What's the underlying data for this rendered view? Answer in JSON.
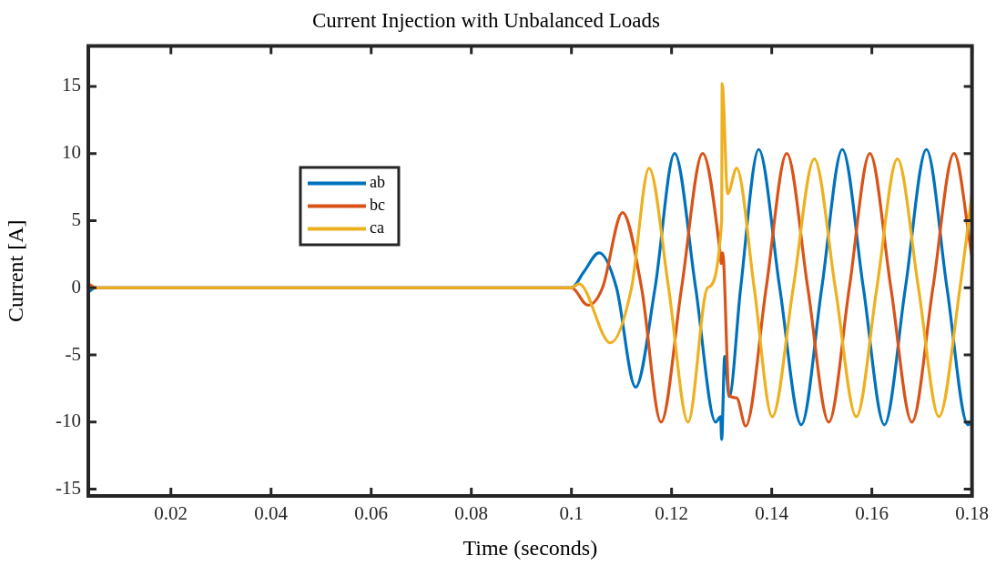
{
  "chart_data": {
    "type": "line",
    "title": "Current Injection with Unbalanced Loads",
    "xlabel": "Time (seconds)",
    "ylabel": "Current [A]",
    "xlim": [
      0.0035,
      0.18
    ],
    "xticks": [
      0.02,
      0.04,
      0.06,
      0.08,
      0.1,
      0.12,
      0.14,
      0.16,
      0.18
    ],
    "ylim": [
      -15.5,
      18
    ],
    "yticks": [
      -15,
      -10,
      -5,
      0,
      5,
      10,
      15
    ],
    "grid": false,
    "legend": "top left",
    "marker": "none",
    "line_style": "solid",
    "series": [
      {
        "name": "ab",
        "color": "#0072bd",
        "x": [
          0.0035,
          0.005,
          0.1,
          0.1025,
          0.1055,
          0.109,
          0.1128,
          0.1167,
          0.1206,
          0.1248,
          0.1288,
          0.1298,
          0.13,
          0.1306,
          0.1315,
          0.1338,
          0.1374,
          0.1416,
          0.1459,
          0.15,
          0.1541,
          0.1583,
          0.1625,
          0.1667,
          0.1709,
          0.175,
          0.1792,
          0.18
        ],
        "values": [
          -0.3,
          0,
          0,
          1.2,
          2.6,
          0,
          -7.4,
          0,
          10,
          0,
          -10,
          -9.6,
          -11.3,
          -5.1,
          -8.1,
          0,
          10.3,
          0,
          -10.2,
          0,
          10.3,
          0,
          -10.2,
          0,
          10.3,
          0,
          -10.2,
          -10
        ]
      },
      {
        "name": "bc",
        "color": "#d95319",
        "x": [
          0.0035,
          0.005,
          0.1,
          0.1033,
          0.1062,
          0.1102,
          0.114,
          0.1179,
          0.122,
          0.1262,
          0.1297,
          0.1299,
          0.1302,
          0.1315,
          0.133,
          0.1348,
          0.1389,
          0.143,
          0.1472,
          0.1514,
          0.1555,
          0.1596,
          0.1638,
          0.168,
          0.1722,
          0.1764,
          0.18
        ],
        "values": [
          0.3,
          0,
          0,
          -1.3,
          0,
          5.6,
          0,
          -10,
          0,
          10,
          2.6,
          1.8,
          2.6,
          -8,
          -8.2,
          -10.3,
          0,
          10,
          0,
          -10,
          0,
          10,
          0,
          -10,
          0,
          10,
          2.3
        ]
      },
      {
        "name": "ca",
        "color": "#edb120",
        "x": [
          0.0035,
          0.1,
          0.1015,
          0.1078,
          0.112,
          0.1155,
          0.1194,
          0.1233,
          0.1272,
          0.13,
          0.1301,
          0.1312,
          0.133,
          0.1365,
          0.1401,
          0.1443,
          0.1485,
          0.1527,
          0.1569,
          0.161,
          0.1651,
          0.1693,
          0.1734,
          0.1776,
          0.18
        ],
        "values": [
          0,
          0,
          0.3,
          -4.1,
          0,
          8.9,
          0,
          -10,
          0,
          5,
          15.2,
          7,
          8.9,
          0,
          -9.6,
          0,
          9.6,
          0,
          -9.6,
          0,
          9.6,
          0,
          -9.6,
          0,
          7
        ]
      }
    ]
  }
}
